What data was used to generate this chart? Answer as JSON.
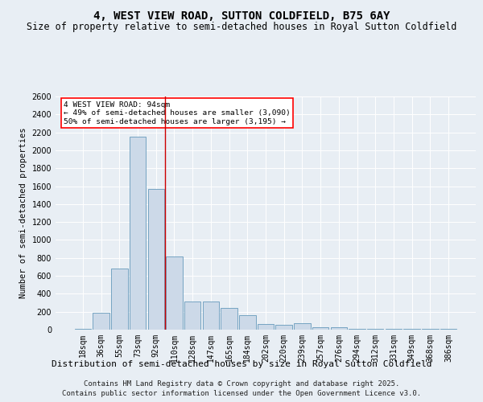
{
  "title": "4, WEST VIEW ROAD, SUTTON COLDFIELD, B75 6AY",
  "subtitle": "Size of property relative to semi-detached houses in Royal Sutton Coldfield",
  "xlabel": "Distribution of semi-detached houses by size in Royal Sutton Coldfield",
  "ylabel": "Number of semi-detached properties",
  "categories": [
    "18sqm",
    "36sqm",
    "55sqm",
    "73sqm",
    "92sqm",
    "110sqm",
    "128sqm",
    "147sqm",
    "165sqm",
    "184sqm",
    "202sqm",
    "220sqm",
    "239sqm",
    "257sqm",
    "276sqm",
    "294sqm",
    "312sqm",
    "331sqm",
    "349sqm",
    "368sqm",
    "386sqm"
  ],
  "values": [
    10,
    185,
    680,
    2150,
    1570,
    820,
    315,
    315,
    240,
    160,
    60,
    55,
    70,
    30,
    30,
    10,
    5,
    5,
    5,
    5,
    5
  ],
  "bar_color": "#ccd9e8",
  "bar_edge_color": "#6699bb",
  "vline_color": "#cc0000",
  "vline_x_idx": 4,
  "annotation_line1": "4 WEST VIEW ROAD: 94sqm",
  "annotation_line2": "← 49% of semi-detached houses are smaller (3,090)",
  "annotation_line3": "50% of semi-detached houses are larger (3,195) →",
  "annotation_box_facecolor": "white",
  "annotation_box_edgecolor": "red",
  "ylim": [
    0,
    2600
  ],
  "yticks": [
    0,
    200,
    400,
    600,
    800,
    1000,
    1200,
    1400,
    1600,
    1800,
    2000,
    2200,
    2400,
    2600
  ],
  "footer_line1": "Contains HM Land Registry data © Crown copyright and database right 2025.",
  "footer_line2": "Contains public sector information licensed under the Open Government Licence v3.0.",
  "bg_color": "#e8eef4",
  "plot_bg_color": "#e8eef4",
  "grid_color": "#ffffff",
  "title_fontsize": 10,
  "subtitle_fontsize": 8.5,
  "ylabel_fontsize": 7.5,
  "xlabel_fontsize": 8,
  "tick_fontsize": 7,
  "annot_fontsize": 6.8,
  "footer_fontsize": 6.5
}
